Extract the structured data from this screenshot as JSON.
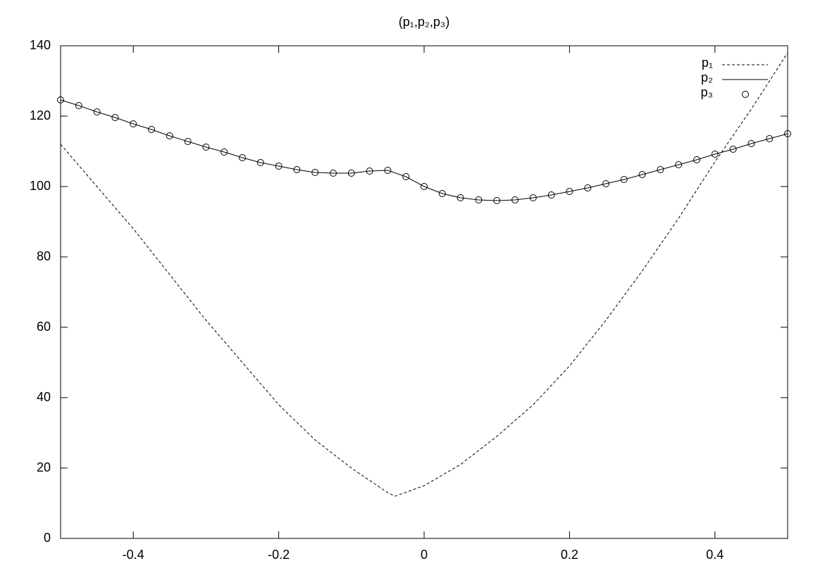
{
  "chart_data": {
    "type": "line",
    "title": "(p₁,p₂,p₃)",
    "xlim": [
      -0.5,
      0.5
    ],
    "xticks": [
      -0.4,
      -0.2,
      0,
      0.2,
      0.4
    ],
    "ylim": [
      0,
      140
    ],
    "yticks": [
      0,
      20,
      40,
      60,
      80,
      100,
      120,
      140
    ],
    "grid": false,
    "legend": "top-right",
    "series": [
      {
        "name": "p₁",
        "color": "#000000",
        "style": "dashed",
        "x": [
          -0.5,
          -0.45,
          -0.4,
          -0.35,
          -0.3,
          -0.25,
          -0.2,
          -0.15,
          -0.1,
          -0.05,
          -0.04,
          0,
          0.05,
          0.1,
          0.15,
          0.2,
          0.25,
          0.3,
          0.35,
          0.4,
          0.45,
          0.5
        ],
        "values": [
          112,
          100,
          88,
          75,
          62,
          50,
          38,
          28,
          20,
          13,
          12,
          15,
          21,
          29,
          38,
          49,
          62,
          76,
          91,
          107,
          122,
          138
        ]
      },
      {
        "name": "p₂",
        "color": "#000000",
        "style": "solid",
        "x": [
          -0.5,
          -0.475,
          -0.45,
          -0.425,
          -0.4,
          -0.375,
          -0.35,
          -0.325,
          -0.3,
          -0.275,
          -0.25,
          -0.225,
          -0.2,
          -0.175,
          -0.15,
          -0.125,
          -0.1,
          -0.075,
          -0.05,
          -0.025,
          0,
          0.025,
          0.05,
          0.075,
          0.1,
          0.125,
          0.15,
          0.175,
          0.2,
          0.225,
          0.25,
          0.275,
          0.3,
          0.325,
          0.35,
          0.375,
          0.4,
          0.425,
          0.45,
          0.475,
          0.5
        ],
        "values": [
          124.6,
          123,
          121.2,
          119.6,
          117.8,
          116.2,
          114.4,
          112.8,
          111.2,
          109.8,
          108.2,
          106.8,
          105.8,
          104.8,
          104,
          103.8,
          103.8,
          104.4,
          104.6,
          102.8,
          100,
          98,
          96.8,
          96.2,
          96,
          96.2,
          96.8,
          97.6,
          98.6,
          99.6,
          100.8,
          102,
          103.4,
          104.8,
          106.2,
          107.6,
          109.2,
          110.6,
          112.2,
          113.6,
          115
        ]
      },
      {
        "name": "p₃",
        "color": "#000000",
        "style": "points",
        "x": [
          -0.5,
          -0.475,
          -0.45,
          -0.425,
          -0.4,
          -0.375,
          -0.35,
          -0.325,
          -0.3,
          -0.275,
          -0.25,
          -0.225,
          -0.2,
          -0.175,
          -0.15,
          -0.125,
          -0.1,
          -0.075,
          -0.05,
          -0.025,
          0,
          0.025,
          0.05,
          0.075,
          0.1,
          0.125,
          0.15,
          0.175,
          0.2,
          0.225,
          0.25,
          0.275,
          0.3,
          0.325,
          0.35,
          0.375,
          0.4,
          0.425,
          0.45,
          0.475,
          0.5
        ],
        "values": [
          124.6,
          123,
          121.2,
          119.6,
          117.8,
          116.2,
          114.4,
          112.8,
          111.2,
          109.8,
          108.2,
          106.8,
          105.8,
          104.8,
          104,
          103.8,
          103.8,
          104.4,
          104.6,
          102.8,
          100,
          98,
          96.8,
          96.2,
          96,
          96.2,
          96.8,
          97.6,
          98.6,
          99.6,
          100.8,
          102,
          103.4,
          104.8,
          106.2,
          107.6,
          109.2,
          110.6,
          112.2,
          113.6,
          115
        ]
      }
    ]
  }
}
